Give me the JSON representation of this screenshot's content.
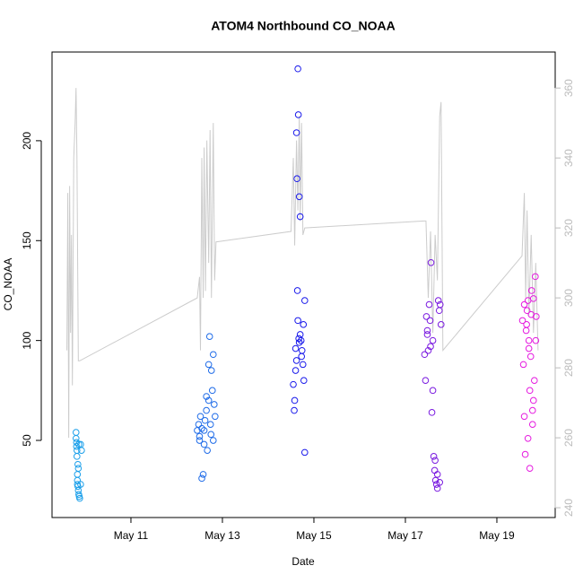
{
  "chart_data": {
    "type": "scatter",
    "title": "ATOM4 Northbound CO_NOAA",
    "x_label": "Date",
    "y_label": "CO_NOAA",
    "xlim": [
      9.275,
      20.275
    ],
    "xticks": [
      {
        "value": 11,
        "label": "May 11"
      },
      {
        "value": 13,
        "label": "May 13"
      },
      {
        "value": 15,
        "label": "May 15"
      },
      {
        "value": 17,
        "label": "May 17"
      },
      {
        "value": 19,
        "label": "May 19"
      }
    ],
    "ylim": [
      11.4,
      244.4
    ],
    "yticks": [
      50,
      100,
      150,
      200
    ],
    "y2lim": [
      237.2,
      370.3
    ],
    "y2ticks": [
      240,
      260,
      280,
      300,
      320,
      340,
      360
    ],
    "series": [
      {
        "color": "#1a9fea",
        "x": [
          9.8,
          9.8,
          9.81,
          9.81,
          9.82,
          9.82,
          9.83,
          9.83,
          9.84,
          9.85,
          9.86,
          9.87,
          9.88,
          9.9,
          9.92,
          9.84,
          9.85,
          9.83,
          9.86,
          9.9
        ],
        "values": [
          54,
          51,
          49,
          47,
          45,
          42,
          30,
          28,
          27,
          25,
          23,
          22,
          21,
          28,
          45,
          38,
          36,
          33,
          48,
          48
        ]
      },
      {
        "color": "#1e6be8",
        "x": [
          12.45,
          12.48,
          12.5,
          12.52,
          12.55,
          12.58,
          12.6,
          12.62,
          12.65,
          12.67,
          12.7,
          12.72,
          12.74,
          12.76,
          12.78,
          12.8,
          12.82,
          12.84,
          12.5,
          12.55,
          12.6,
          12.65,
          12.7,
          12.75,
          12.8
        ],
        "values": [
          55,
          58,
          50,
          62,
          31,
          33,
          55,
          60,
          65,
          45,
          70,
          102,
          58,
          85,
          75,
          93,
          68,
          62,
          52,
          56,
          48,
          72,
          88,
          53,
          50
        ]
      },
      {
        "color": "#1a1aeb",
        "x": [
          14.55,
          14.57,
          14.6,
          14.62,
          14.63,
          14.65,
          14.66,
          14.68,
          14.7,
          14.72,
          14.74,
          14.76,
          14.78,
          14.8,
          14.58,
          14.6,
          14.64,
          14.67,
          14.7,
          14.73,
          14.77,
          14.8,
          14.62,
          14.65,
          14.68
        ],
        "values": [
          78,
          65,
          85,
          204,
          181,
          236,
          213,
          172,
          162,
          100,
          95,
          88,
          80,
          44,
          70,
          96,
          125,
          101,
          103,
          92,
          108,
          120,
          90,
          110,
          99
        ]
      },
      {
        "color": "#7a1ae0",
        "x": [
          17.42,
          17.44,
          17.46,
          17.48,
          17.5,
          17.52,
          17.54,
          17.56,
          17.58,
          17.6,
          17.62,
          17.64,
          17.66,
          17.68,
          17.7,
          17.72,
          17.74,
          17.76,
          17.78,
          17.6,
          17.65,
          17.7,
          17.75,
          17.48,
          17.55
        ],
        "values": [
          93,
          80,
          112,
          105,
          95,
          118,
          110,
          139,
          64,
          75,
          42,
          35,
          30,
          28,
          26,
          120,
          115,
          118,
          108,
          100,
          40,
          33,
          29,
          103,
          97
        ]
      },
      {
        "color": "#e51adf",
        "x": [
          19.56,
          19.58,
          19.6,
          19.62,
          19.64,
          19.66,
          19.68,
          19.7,
          19.72,
          19.74,
          19.76,
          19.78,
          19.8,
          19.82,
          19.84,
          19.86,
          19.6,
          19.65,
          19.7,
          19.75,
          19.8,
          19.85,
          19.68,
          19.72,
          19.78
        ],
        "values": [
          110,
          88,
          62,
          43,
          105,
          115,
          120,
          100,
          36,
          92,
          125,
          58,
          70,
          80,
          132,
          112,
          118,
          108,
          96,
          113,
          121,
          100,
          51,
          75,
          65
        ]
      },
      {
        "color": "#cccccc",
        "axis": "y2",
        "x": [
          9.6,
          9.62,
          9.64,
          9.66,
          9.68,
          9.7,
          9.72,
          9.75,
          9.78,
          9.8,
          9.82,
          9.85,
          9.88,
          12.45,
          12.5,
          12.52,
          12.55,
          12.58,
          12.6,
          12.63,
          12.66,
          12.7,
          12.73,
          12.76,
          12.8,
          12.83,
          12.86,
          14.5,
          14.55,
          14.58,
          14.62,
          14.65,
          14.68,
          14.7,
          14.73,
          14.76,
          14.8,
          17.4,
          17.45,
          17.5,
          17.55,
          17.6,
          17.65,
          17.7,
          17.75,
          17.78,
          17.82,
          19.55,
          19.6,
          19.63,
          19.66,
          19.7,
          19.75,
          19.8,
          19.85,
          19.9
        ],
        "values": [
          285,
          330,
          260,
          332,
          290,
          318,
          275,
          340,
          350,
          360,
          340,
          282,
          282,
          300,
          306,
          285,
          340,
          300,
          343,
          302,
          345,
          310,
          348,
          300,
          350,
          305,
          316,
          319,
          340,
          315,
          345,
          325,
          352,
          322,
          350,
          318,
          320,
          322,
          322,
          300,
          319,
          290,
          318,
          305,
          352,
          356,
          285,
          312,
          330,
          300,
          325,
          295,
          318,
          290,
          310,
          285
        ]
      }
    ]
  }
}
